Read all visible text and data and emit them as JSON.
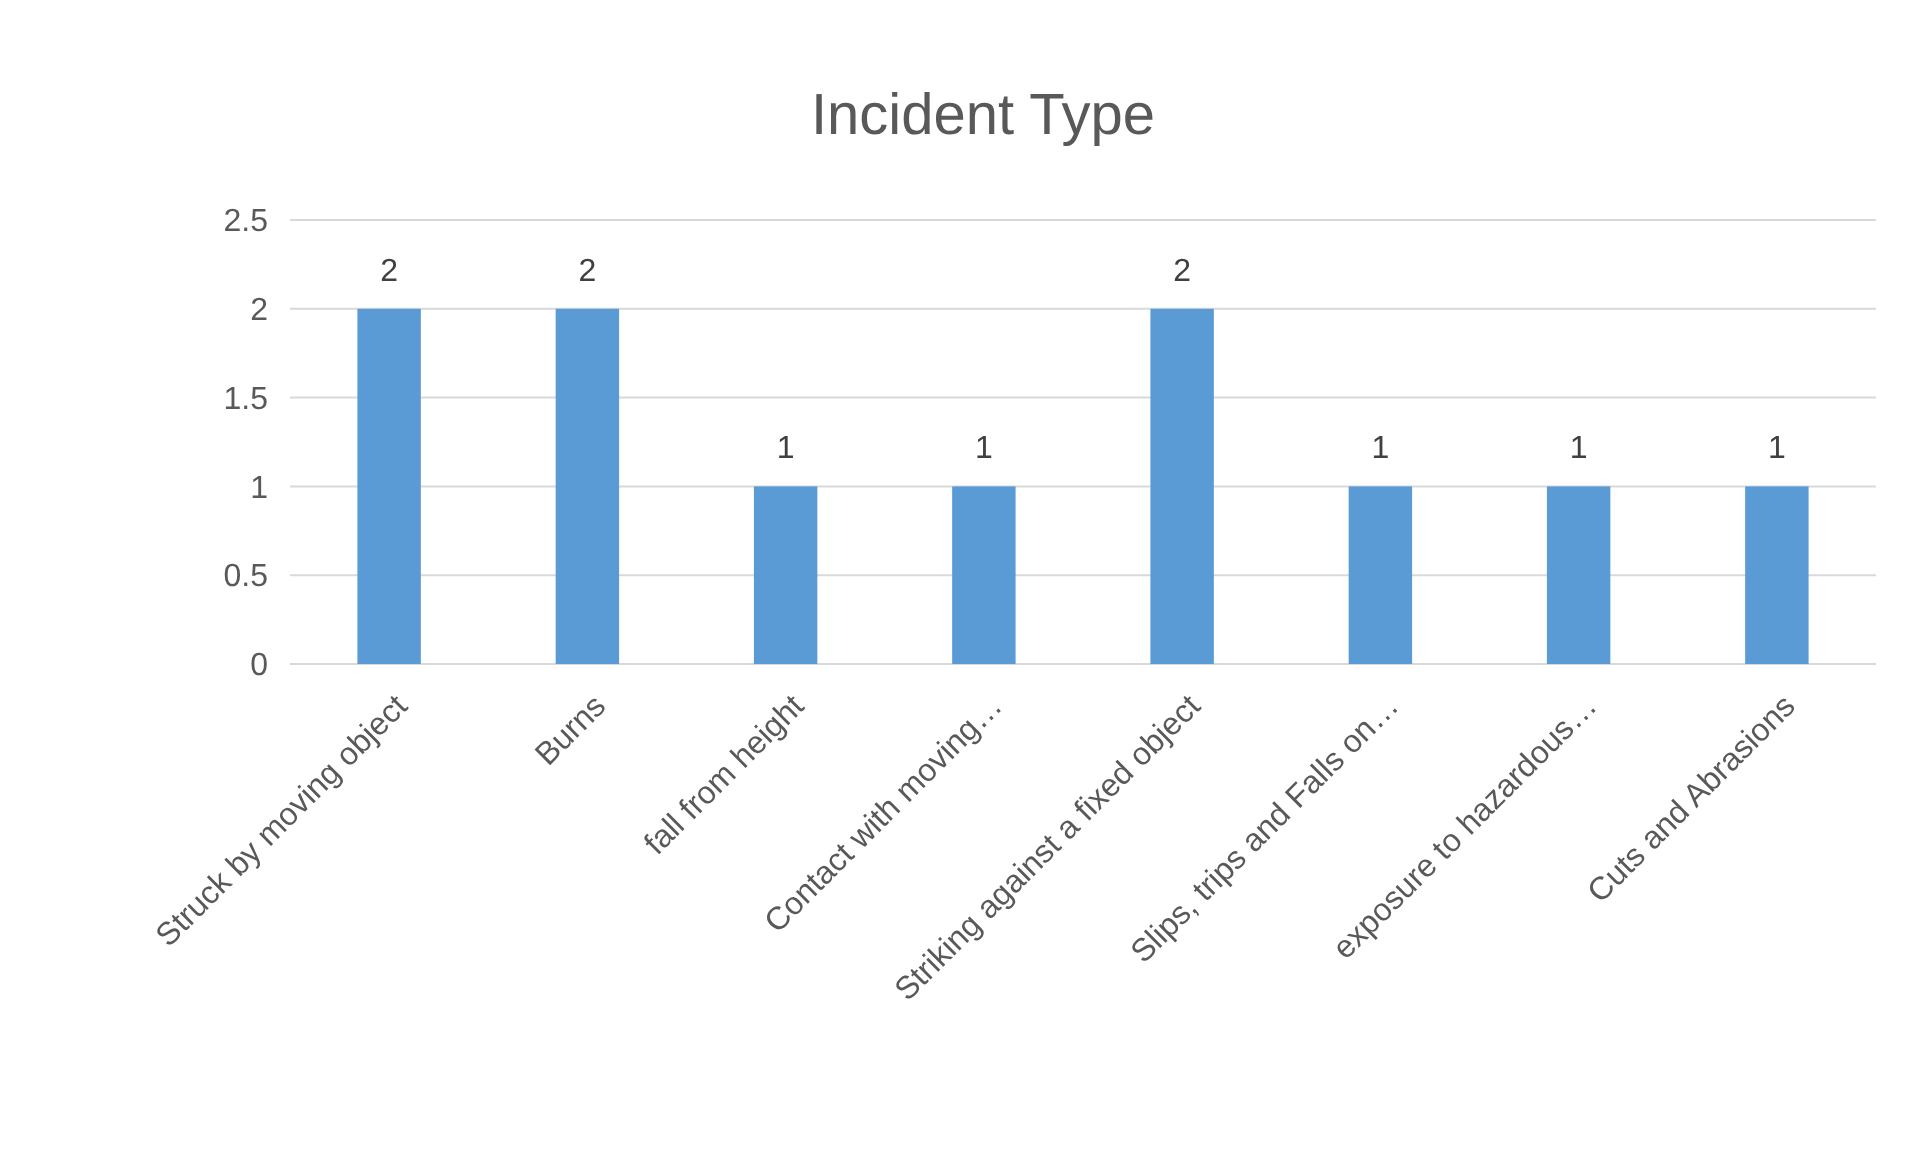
{
  "chart_data": {
    "type": "bar",
    "title": "Incident Type",
    "categories": [
      "Struck by moving object",
      "Burns",
      "fall from height",
      "Contact with moving…",
      "Striking against a fixed object",
      "Slips, trips and Falls on…",
      "exposure to hazardous…",
      "Cuts and Abrasions"
    ],
    "values": [
      2,
      2,
      1,
      1,
      2,
      1,
      1,
      1
    ],
    "color": "#5b9bd5",
    "ylim": [
      0,
      2.5
    ],
    "yticks": [
      0,
      0.5,
      1,
      1.5,
      2,
      2.5
    ],
    "grid": "y",
    "data_labels": true
  }
}
